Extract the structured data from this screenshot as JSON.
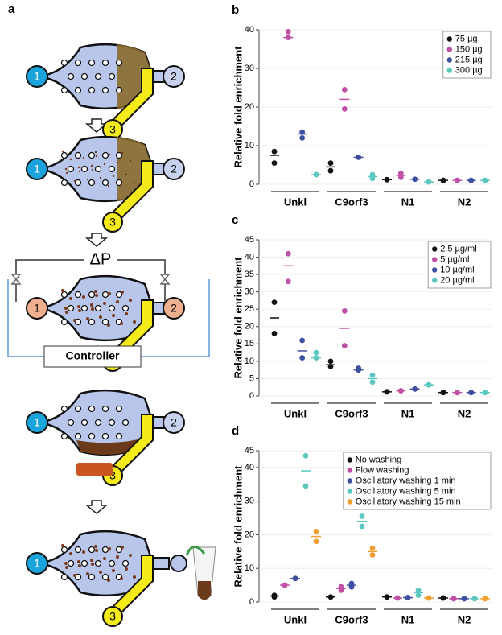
{
  "panel_a": {
    "label": "a",
    "port1": "1",
    "port2": "2",
    "port3": "3",
    "delta_p": "ΔP",
    "controller": "Controller"
  },
  "chart_data": [
    {
      "type": "dot",
      "panel": "b",
      "y_label": "Relative fold enrichment",
      "categories": [
        "Unkl",
        "C9orf3",
        "N1",
        "N2"
      ],
      "ylim": [
        0,
        40
      ],
      "yticks": [
        0,
        10,
        20,
        30,
        40
      ],
      "grid": true,
      "legend": "top-right",
      "series": [
        {
          "name": "75 µg",
          "color": "#111111",
          "values": [
            7.5,
            4.5,
            1.2,
            1
          ],
          "replicates": [
            [
              8.5,
              5.5
            ],
            [
              5.5,
              3.5
            ],
            [
              1.2,
              1.2
            ],
            [
              1,
              1
            ]
          ]
        },
        {
          "name": "150 µg",
          "color": "#c04fa6",
          "values": [
            38,
            22,
            2.3,
            1
          ],
          "replicates": [
            [
              39.5,
              38
            ],
            [
              24.5,
              19.5
            ],
            [
              2.8,
              1.8
            ],
            [
              1,
              1
            ]
          ]
        },
        {
          "name": "215 µg",
          "color": "#3f4fa0",
          "values": [
            13,
            7,
            1.3,
            1
          ],
          "replicates": [
            [
              13.5,
              12
            ],
            [
              7,
              7
            ],
            [
              1.3,
              1.3
            ],
            [
              1,
              1
            ]
          ]
        },
        {
          "name": "300 µg",
          "color": "#5cc8c0",
          "values": [
            2.5,
            2,
            0.6,
            1
          ],
          "replicates": [
            [
              2.5,
              2.5
            ],
            [
              2.5,
              1.5
            ],
            [
              0.6,
              0.6
            ],
            [
              1,
              1
            ]
          ]
        }
      ]
    },
    {
      "type": "dot",
      "panel": "c",
      "y_label": "Relative fold enrichment",
      "categories": [
        "Unkl",
        "C9orf3",
        "N1",
        "N2"
      ],
      "ylim": [
        0,
        45
      ],
      "yticks": [
        0,
        5,
        10,
        15,
        20,
        25,
        30,
        35,
        40,
        45
      ],
      "grid": true,
      "legend": "top-right",
      "series": [
        {
          "name": "2.5 µg/ml",
          "color": "#111111",
          "values": [
            22.5,
            9,
            1.2,
            1
          ],
          "replicates": [
            [
              27,
              18
            ],
            [
              10,
              8.5
            ],
            [
              1.2,
              1.2
            ],
            [
              1,
              1
            ]
          ]
        },
        {
          "name": "5 µg/ml",
          "color": "#c04fa6",
          "values": [
            37.5,
            19.5,
            1.5,
            1
          ],
          "replicates": [
            [
              41,
              33
            ],
            [
              24.5,
              14.5
            ],
            [
              1.5,
              1.5
            ],
            [
              1,
              1
            ]
          ]
        },
        {
          "name": "10 µg/ml",
          "color": "#3f4fa0",
          "values": [
            13,
            7.5,
            2,
            1
          ],
          "replicates": [
            [
              16,
              11
            ],
            [
              8,
              7.5
            ],
            [
              2,
              2
            ],
            [
              1,
              1
            ]
          ]
        },
        {
          "name": "20 µg/ml",
          "color": "#5cc8c0",
          "values": [
            11,
            5,
            3.2,
            1
          ],
          "replicates": [
            [
              12.5,
              11
            ],
            [
              6,
              4
            ],
            [
              3.2,
              3.2
            ],
            [
              1,
              1
            ]
          ]
        }
      ]
    },
    {
      "type": "dot",
      "panel": "d",
      "y_label": "Relative fold enrichment",
      "categories": [
        "Unkl",
        "C9orf3",
        "N1",
        "N2"
      ],
      "ylim": [
        0,
        45
      ],
      "yticks": [
        0,
        10,
        20,
        30,
        40,
        45
      ],
      "grid": true,
      "legend": "top-right",
      "series": [
        {
          "name": "No washing",
          "color": "#111111",
          "values": [
            1.8,
            1.5,
            1.5,
            1.2
          ],
          "replicates": [
            [
              2,
              1.5
            ],
            [
              1.5,
              1.5
            ],
            [
              1.5,
              1.5
            ],
            [
              1.2,
              1.2
            ]
          ]
        },
        {
          "name": "Flow washing",
          "color": "#c04fa6",
          "values": [
            5,
            4,
            1.2,
            1
          ],
          "replicates": [
            [
              5,
              5
            ],
            [
              4.5,
              3.5
            ],
            [
              1.2,
              1.2
            ],
            [
              1,
              1
            ]
          ]
        },
        {
          "name": "Oscillatory washing 1 min",
          "color": "#3f4fa0",
          "values": [
            7,
            5,
            1.3,
            1
          ],
          "replicates": [
            [
              7,
              7
            ],
            [
              5.5,
              4.5
            ],
            [
              1.3,
              1.3
            ],
            [
              1,
              1
            ]
          ]
        },
        {
          "name": "Oscillatory washing 5 min",
          "color": "#5cc8c0",
          "values": [
            39,
            24,
            2.8,
            1
          ],
          "replicates": [
            [
              43.5,
              34.5
            ],
            [
              25.5,
              22.5
            ],
            [
              3.5,
              2
            ],
            [
              1,
              1
            ]
          ]
        },
        {
          "name": "Oscillatory washing 15 min",
          "color": "#f0a030",
          "values": [
            19.5,
            15,
            1.2,
            1
          ],
          "replicates": [
            [
              21,
              18
            ],
            [
              16,
              14
            ],
            [
              1.2,
              1.2
            ],
            [
              1,
              1
            ]
          ]
        }
      ]
    }
  ]
}
